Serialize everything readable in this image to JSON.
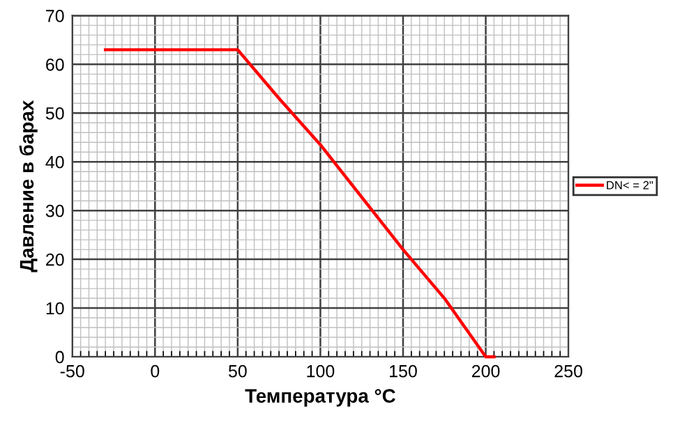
{
  "chart_data": {
    "type": "line",
    "xlabel": "Температура °C",
    "ylabel": "Давление в барах",
    "series": [
      {
        "name": "DN< = 2\"",
        "color": "#ff0000",
        "x": [
          -30,
          50,
          75,
          100,
          150,
          175,
          200,
          205
        ],
        "values": [
          63,
          63,
          53,
          43.5,
          22,
          12,
          0,
          0
        ]
      }
    ],
    "xlim": [
      -50,
      250
    ],
    "xticks": [
      -50,
      0,
      50,
      100,
      150,
      200,
      250
    ],
    "ylim": [
      0,
      70
    ],
    "yticks": [
      0,
      10,
      20,
      30,
      40,
      50,
      60,
      70
    ],
    "grid": true,
    "legend": "right",
    "marker": "none",
    "line_style": "solid"
  }
}
